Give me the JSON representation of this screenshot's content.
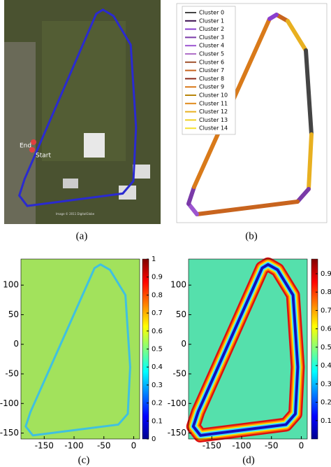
{
  "panels": [
    {
      "caption": "(a)",
      "labels": {
        "end": "End",
        "start": "Start",
        "credit": "Image © 2011 DigitalGlobe"
      }
    },
    {
      "caption": "(b)",
      "legend": [
        {
          "name": "Cluster 0",
          "color": "#444444"
        },
        {
          "name": "Cluster 1",
          "color": "#3a0f50"
        },
        {
          "name": "Cluster 2",
          "color": "#8a3fd0"
        },
        {
          "name": "Cluster 3",
          "color": "#7a3aa8"
        },
        {
          "name": "Cluster 4",
          "color": "#9c55d0"
        },
        {
          "name": "Cluster 5",
          "color": "#b070c8"
        },
        {
          "name": "Cluster 6",
          "color": "#a0522d"
        },
        {
          "name": "Cluster 7",
          "color": "#c8641e"
        },
        {
          "name": "Cluster 8",
          "color": "#8b2a1a"
        },
        {
          "name": "Cluster 9",
          "color": "#d97a1a"
        },
        {
          "name": "Cluster 10",
          "color": "#b8860b"
        },
        {
          "name": "Cluster 11",
          "color": "#e08a1a"
        },
        {
          "name": "Cluster 12",
          "color": "#e8b020"
        },
        {
          "name": "Cluster 13",
          "color": "#f0d020"
        },
        {
          "name": "Cluster 14",
          "color": "#f5e030"
        }
      ]
    },
    {
      "caption": "(c)",
      "type": "heatmap",
      "xlim": [
        -189,
        10
      ],
      "ylim": [
        -160,
        144
      ],
      "xticks": [
        -150,
        -100,
        -50,
        0
      ],
      "yticks": [
        100,
        50,
        0,
        -50,
        -100,
        -150
      ],
      "clim": [
        0,
        1
      ],
      "cticks": [
        0,
        0.1,
        0.2,
        0.3,
        0.4,
        0.5,
        0.6,
        0.7,
        0.8,
        0.9,
        1
      ]
    },
    {
      "caption": "(d)",
      "type": "heatmap",
      "xlim": [
        -189,
        10
      ],
      "ylim": [
        -160,
        144
      ],
      "xticks": [
        -150,
        -100,
        -50,
        0
      ],
      "yticks": [
        100,
        50,
        0,
        -50,
        -100,
        -150
      ],
      "clim": [
        0,
        0.98
      ],
      "cticks": [
        0.1,
        0.2,
        0.3,
        0.4,
        0.5,
        0.6,
        0.7,
        0.8,
        0.9
      ]
    }
  ]
}
